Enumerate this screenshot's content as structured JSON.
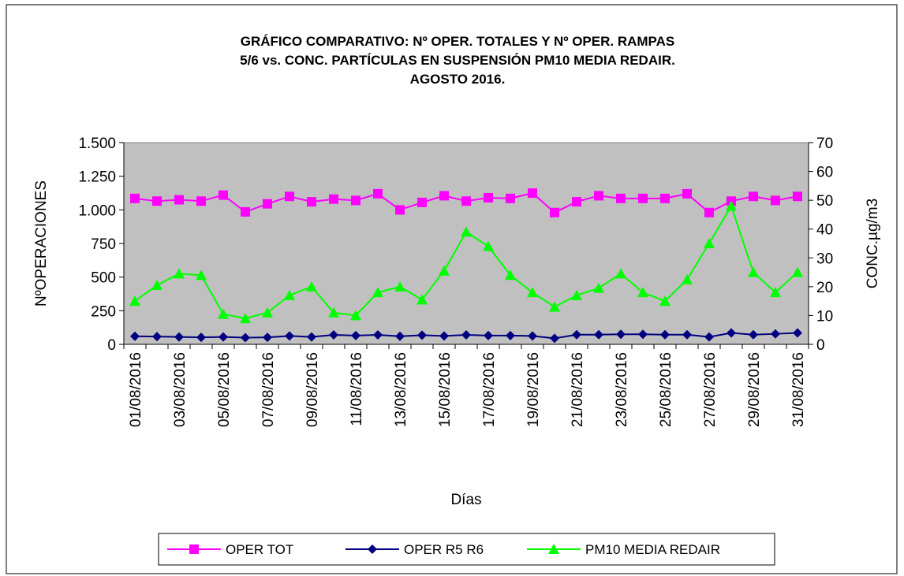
{
  "chart_data": {
    "type": "line",
    "title_lines": [
      "GRÁFICO COMPARATIVO:  Nº OPER. TOTALES Y Nº OPER. RAMPAS",
      "5/6 vs. CONC.  PARTÍCULAS  EN SUSPENSIÓN PM10 MEDIA REDAIR.",
      "AGOSTO 2016."
    ],
    "x_label": "Días",
    "y_label": "NºOPERACIONES",
    "y2_label": "CONC.µg/m3",
    "categories": [
      "01/08/2016",
      null,
      "03/08/2016",
      null,
      "05/08/2016",
      null,
      "07/08/2016",
      null,
      "09/08/2016",
      null,
      "11/08/2016",
      null,
      "13/08/2016",
      null,
      "15/08/2016",
      null,
      "17/08/2016",
      null,
      "19/08/2016",
      null,
      "21/08/2016",
      null,
      "23/08/2016",
      null,
      "25/08/2016",
      null,
      "27/08/2016",
      null,
      "29/08/2016",
      null,
      "31/08/2016"
    ],
    "ylim": [
      0,
      1500
    ],
    "yticks": [
      0,
      250,
      500,
      750,
      {
        "value": 1000,
        "label": "1.000"
      },
      {
        "value": 1250,
        "label": "1.250"
      },
      {
        "value": 1500,
        "label": "1.500"
      }
    ],
    "y2lim": [
      0,
      70
    ],
    "y2ticks": [
      0,
      10,
      20,
      30,
      40,
      50,
      60,
      70
    ],
    "plot_background": "#c0c0c0",
    "legend": "bottom",
    "series": [
      {
        "name": "OPER TOT",
        "color": "#ff00ff",
        "marker": "square",
        "values": [
          1085,
          1065,
          1075,
          1065,
          1110,
          985,
          1045,
          1100,
          1060,
          1080,
          1070,
          1120,
          1000,
          1055,
          1105,
          1065,
          1090,
          1085,
          1125,
          980,
          1060,
          1105,
          1085,
          1085,
          1085,
          1120,
          980,
          1065,
          1100,
          1070,
          1100
        ]
      },
      {
        "name": "OPER R5 R6",
        "color": "#000080",
        "marker": "diamond",
        "values": [
          60,
          58,
          55,
          52,
          55,
          50,
          52,
          62,
          55,
          70,
          65,
          70,
          60,
          68,
          62,
          70,
          65,
          65,
          62,
          45,
          72,
          72,
          75,
          75,
          72,
          72,
          55,
          85,
          72,
          78,
          85
        ]
      },
      {
        "name": "PM10 MEDIA REDAIR",
        "color": "#00ff00",
        "marker": "triangle",
        "axis": "y2",
        "values": [
          15,
          20.5,
          24.5,
          24,
          10.5,
          9,
          11,
          17,
          20,
          11,
          10,
          18,
          20,
          15.5,
          25.5,
          39,
          34,
          24,
          18,
          13,
          17,
          19.5,
          24.5,
          18,
          15,
          22.5,
          35,
          48,
          25,
          18,
          25
        ]
      }
    ]
  }
}
